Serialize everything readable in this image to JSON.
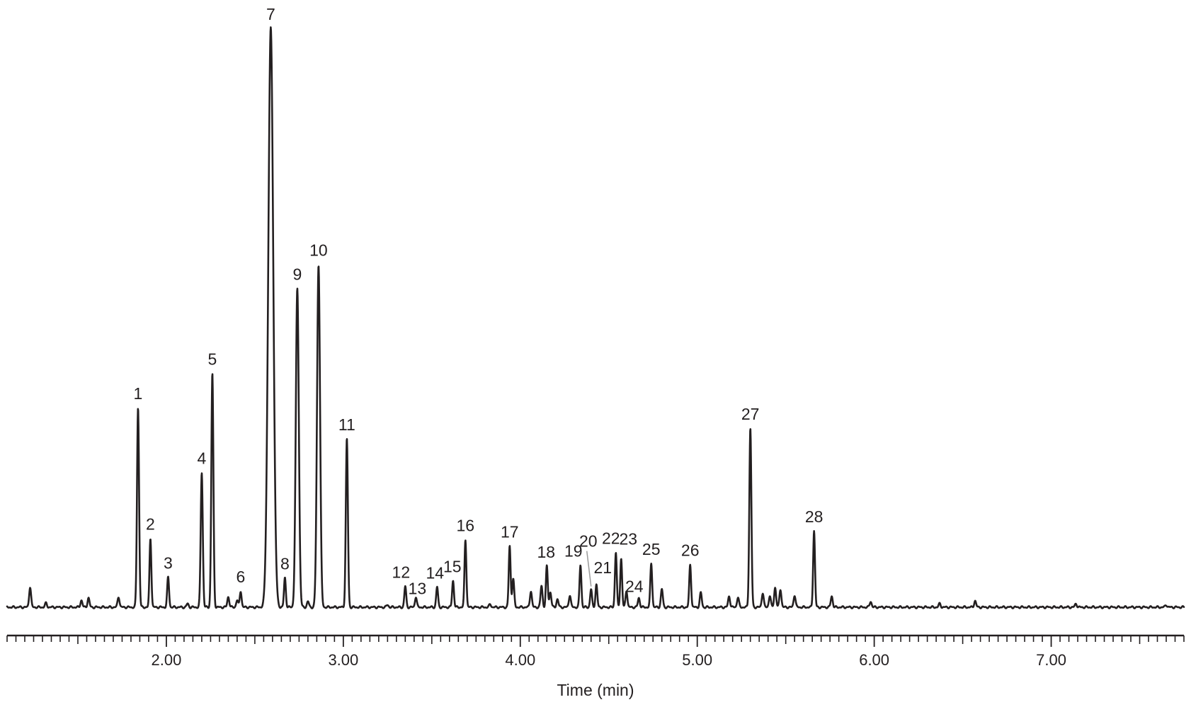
{
  "chart_data": {
    "type": "line",
    "title": "",
    "xlabel": "Time (min)",
    "ylabel": "",
    "xlim": [
      1.1,
      7.75
    ],
    "ylim": [
      0,
      100
    ],
    "grid": false,
    "x_ticks": {
      "major": [
        2.0,
        3.0,
        4.0,
        5.0,
        6.0,
        7.0
      ],
      "major_labels": [
        "2.00",
        "3.00",
        "4.00",
        "5.00",
        "6.00",
        "7.00"
      ],
      "minor_step": 0.05
    },
    "peaks": [
      {
        "label": "1",
        "rt": 1.84,
        "height": 34.5
      },
      {
        "label": "2",
        "rt": 1.91,
        "height": 11.9
      },
      {
        "label": "3",
        "rt": 2.01,
        "height": 5.2
      },
      {
        "label": "4",
        "rt": 2.2,
        "height": 23.3
      },
      {
        "label": "5",
        "rt": 2.26,
        "height": 40.4
      },
      {
        "label": "6",
        "rt": 2.42,
        "height": 2.8
      },
      {
        "label": "7",
        "rt": 2.59,
        "height": 100
      },
      {
        "label": "8",
        "rt": 2.67,
        "height": 5.1
      },
      {
        "label": "9",
        "rt": 2.74,
        "height": 55.1
      },
      {
        "label": "10",
        "rt": 2.86,
        "height": 59.2
      },
      {
        "label": "11",
        "rt": 3.02,
        "height": 29.1
      },
      {
        "label": "12",
        "rt": 3.35,
        "height": 3.6
      },
      {
        "label": "13",
        "rt": 3.41,
        "height": 1.8
      },
      {
        "label": "14",
        "rt": 3.53,
        "height": 3.5
      },
      {
        "label": "15",
        "rt": 3.62,
        "height": 4.6
      },
      {
        "label": "16",
        "rt": 3.69,
        "height": 11.7
      },
      {
        "label": "17",
        "rt": 3.94,
        "height": 10.6
      },
      {
        "label": "18",
        "rt": 4.15,
        "height": 7.1
      },
      {
        "label": "19",
        "rt": 4.34,
        "height": 7.3
      },
      {
        "label": "20",
        "rt": 4.4,
        "height": 3.1
      },
      {
        "label": "21",
        "rt": 4.43,
        "height": 3.9
      },
      {
        "label": "22",
        "rt": 4.54,
        "height": 9.5
      },
      {
        "label": "23",
        "rt": 4.57,
        "height": 8.4
      },
      {
        "label": "24",
        "rt": 4.6,
        "height": 2.9
      },
      {
        "label": "25",
        "rt": 4.74,
        "height": 7.6
      },
      {
        "label": "26",
        "rt": 4.96,
        "height": 7.4
      },
      {
        "label": "27",
        "rt": 5.3,
        "height": 30.9
      },
      {
        "label": "28",
        "rt": 5.66,
        "height": 13.2
      }
    ],
    "minor_peaks": [
      {
        "rt": 1.23,
        "height": 3.5
      },
      {
        "rt": 1.32,
        "height": 0.7
      },
      {
        "rt": 1.52,
        "height": 1.2
      },
      {
        "rt": 1.56,
        "height": 1.6
      },
      {
        "rt": 1.73,
        "height": 1.8
      },
      {
        "rt": 2.12,
        "height": 0.6
      },
      {
        "rt": 2.35,
        "height": 1.8
      },
      {
        "rt": 2.4,
        "height": 1.2
      },
      {
        "rt": 2.8,
        "height": 1.0
      },
      {
        "rt": 3.25,
        "height": 0.4
      },
      {
        "rt": 3.83,
        "height": 0.5
      },
      {
        "rt": 3.96,
        "height": 4.9
      },
      {
        "rt": 4.06,
        "height": 2.8
      },
      {
        "rt": 4.12,
        "height": 3.7
      },
      {
        "rt": 4.17,
        "height": 2.6
      },
      {
        "rt": 4.21,
        "height": 1.4
      },
      {
        "rt": 4.28,
        "height": 2.1
      },
      {
        "rt": 4.67,
        "height": 1.6
      },
      {
        "rt": 4.8,
        "height": 3.1
      },
      {
        "rt": 5.02,
        "height": 2.5
      },
      {
        "rt": 5.18,
        "height": 1.9
      },
      {
        "rt": 5.23,
        "height": 1.7
      },
      {
        "rt": 5.37,
        "height": 2.5
      },
      {
        "rt": 5.41,
        "height": 2.0
      },
      {
        "rt": 5.44,
        "height": 3.4
      },
      {
        "rt": 5.47,
        "height": 3.1
      },
      {
        "rt": 5.55,
        "height": 2.1
      },
      {
        "rt": 5.76,
        "height": 1.9
      },
      {
        "rt": 5.98,
        "height": 1.0
      },
      {
        "rt": 6.37,
        "height": 0.6
      },
      {
        "rt": 6.57,
        "height": 1.1
      },
      {
        "rt": 7.14,
        "height": 0.6
      },
      {
        "rt": 7.65,
        "height": 0.4
      }
    ]
  }
}
